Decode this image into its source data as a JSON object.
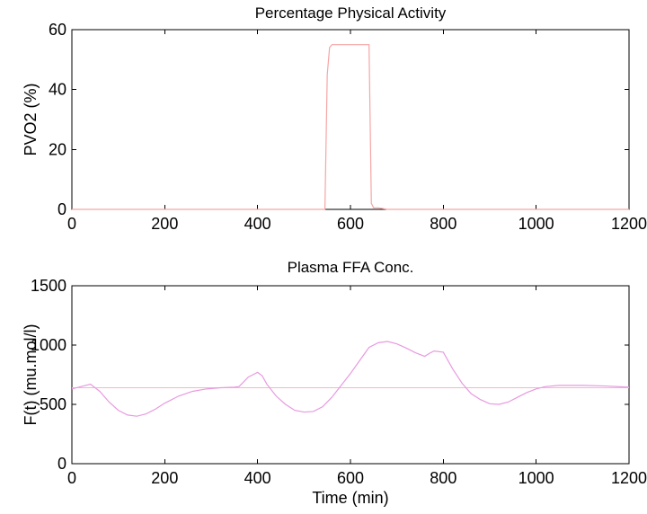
{
  "chart_data": [
    {
      "type": "line",
      "title": "Percentage Physical Activity",
      "xlabel": "",
      "ylabel": "PVO2 (%)",
      "xlim": [
        0,
        1200
      ],
      "ylim": [
        0,
        60
      ],
      "xticks": [
        0,
        200,
        400,
        600,
        800,
        1000,
        1200
      ],
      "yticks": [
        0,
        20,
        40,
        60
      ],
      "grid": false,
      "series": [
        {
          "color": "#f6a5a5",
          "x": [
            0,
            545,
            550,
            555,
            560,
            640,
            645,
            650,
            660,
            680,
            1200
          ],
          "y": [
            0,
            0,
            45,
            54,
            55,
            55,
            2,
            0.5,
            0.5,
            0,
            0
          ]
        }
      ]
    },
    {
      "type": "line",
      "title": "Plasma FFA Conc.",
      "xlabel": "Time (min)",
      "ylabel": "F(t) (mu.mol/l)",
      "xlim": [
        0,
        1200
      ],
      "ylim": [
        0,
        1500
      ],
      "xticks": [
        0,
        200,
        400,
        600,
        800,
        1000,
        1200
      ],
      "yticks": [
        0,
        500,
        1000,
        1500
      ],
      "grid": false,
      "reference_line": {
        "y": 640,
        "color": "#f6b6c4"
      },
      "series": [
        {
          "color": "#e79ae0",
          "x": [
            0,
            20,
            40,
            60,
            80,
            100,
            120,
            140,
            160,
            180,
            200,
            230,
            260,
            290,
            320,
            350,
            360,
            370,
            380,
            390,
            400,
            410,
            420,
            440,
            460,
            480,
            500,
            520,
            540,
            560,
            580,
            600,
            620,
            640,
            660,
            680,
            700,
            720,
            740,
            760,
            770,
            780,
            800,
            820,
            840,
            860,
            880,
            900,
            920,
            940,
            960,
            980,
            1000,
            1020,
            1050,
            1100,
            1150,
            1200
          ],
          "y": [
            630,
            650,
            670,
            610,
            520,
            450,
            410,
            400,
            420,
            460,
            510,
            570,
            610,
            630,
            640,
            645,
            650,
            690,
            730,
            750,
            770,
            740,
            670,
            570,
            500,
            450,
            435,
            440,
            480,
            560,
            660,
            760,
            870,
            980,
            1020,
            1030,
            1010,
            975,
            935,
            905,
            930,
            950,
            940,
            800,
            680,
            590,
            540,
            505,
            500,
            520,
            560,
            600,
            630,
            650,
            660,
            660,
            655,
            645
          ]
        }
      ]
    }
  ]
}
